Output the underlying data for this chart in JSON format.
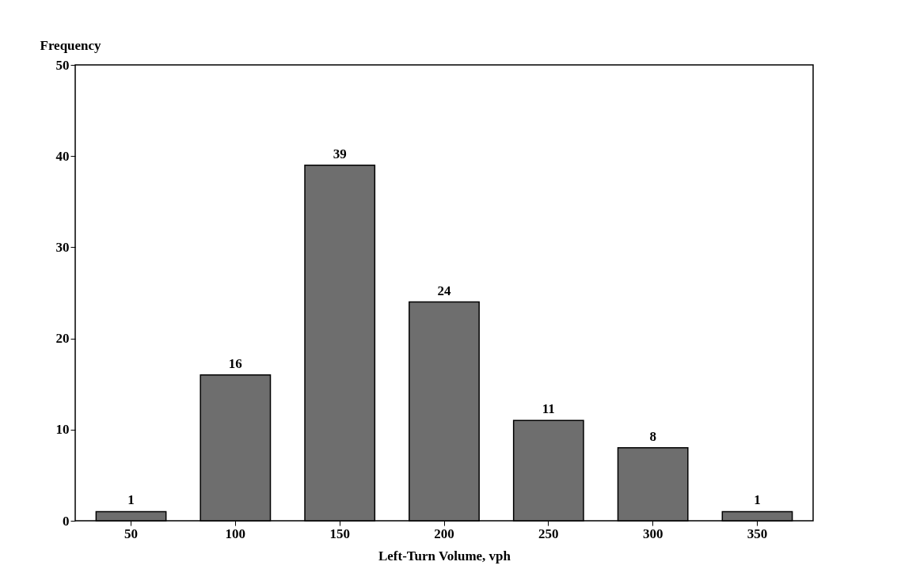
{
  "chart_data": {
    "type": "bar",
    "xlabel": "Left-Turn Volume, vph",
    "ylabel": "Frequency",
    "categories": [
      "50",
      "100",
      "150",
      "200",
      "250",
      "300",
      "350"
    ],
    "values": [
      1,
      16,
      39,
      24,
      11,
      8,
      1
    ],
    "color": "#6e6e6e",
    "ylim": [
      0,
      50
    ],
    "yticks": [
      0,
      10,
      20,
      30,
      40,
      50
    ],
    "grid": false,
    "data_labels": true
  }
}
